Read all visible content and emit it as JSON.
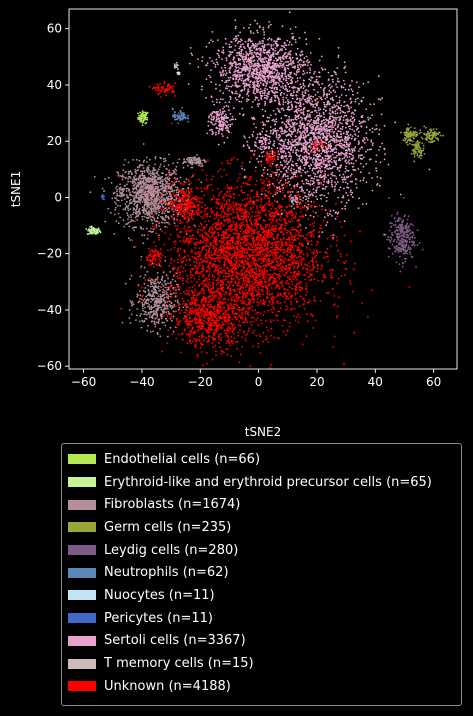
{
  "chart_data": {
    "type": "scatter",
    "title": "",
    "xlabel": "tSNE2",
    "ylabel": "tSNE1",
    "xlim": [
      -65,
      68
    ],
    "ylim": [
      -61,
      67
    ],
    "xticks": [
      -60,
      -40,
      -20,
      0,
      20,
      40,
      60
    ],
    "yticks": [
      -60,
      -40,
      -20,
      0,
      20,
      40,
      60
    ],
    "grid": false,
    "legend_position": "below-plot",
    "series": [
      {
        "name": "Endothelial cells (n=66)",
        "color": "#b5e853",
        "count": 66,
        "clusters": [
          {
            "x": -39.5,
            "y": 28.5,
            "sx": 0.9,
            "sy": 1.1,
            "n": 66
          }
        ]
      },
      {
        "name": "Erythroid-like and erythroid precursor cells (n=65)",
        "color": "#c6f598",
        "count": 65,
        "clusters": [
          {
            "x": -56.5,
            "y": -12,
            "sx": 1.1,
            "sy": 0.7,
            "n": 65
          }
        ]
      },
      {
        "name": "Fibroblasts (n=1674)",
        "color": "#b48f9c",
        "count": 1674,
        "clusters": [
          {
            "x": -37,
            "y": 1,
            "sx": 5.5,
            "sy": 5.5,
            "n": 1100
          },
          {
            "x": -35,
            "y": -37,
            "sx": 3.5,
            "sy": 5,
            "n": 420
          },
          {
            "x": -22,
            "y": 13,
            "sx": 2,
            "sy": 1,
            "n": 90
          },
          {
            "x": 13,
            "y": -1,
            "sx": 1,
            "sy": 1,
            "n": 40
          },
          {
            "x": -47,
            "y": 2,
            "sx": 1,
            "sy": 1.5,
            "n": 24
          }
        ]
      },
      {
        "name": "Germ cells (n=235)",
        "color": "#9aa637",
        "count": 235,
        "clusters": [
          {
            "x": 52,
            "y": 22.5,
            "sx": 1.4,
            "sy": 1.4,
            "n": 90
          },
          {
            "x": 59,
            "y": 22,
            "sx": 1.6,
            "sy": 1.5,
            "n": 80
          },
          {
            "x": 54.5,
            "y": 17,
            "sx": 1.1,
            "sy": 1.4,
            "n": 65
          }
        ]
      },
      {
        "name": "Leydig cells (n=280)",
        "color": "#7f5a86",
        "count": 280,
        "clusters": [
          {
            "x": 49,
            "y": -14.5,
            "sx": 2.2,
            "sy": 4,
            "n": 280
          }
        ]
      },
      {
        "name": "Neutrophils (n=62)",
        "color": "#5b88b8",
        "count": 62,
        "clusters": [
          {
            "x": -27,
            "y": 29,
            "sx": 1.2,
            "sy": 1.2,
            "n": 62
          }
        ]
      },
      {
        "name": "Nuocytes (n=11)",
        "color": "#c3e4f2",
        "count": 11,
        "clusters": [
          {
            "x": -27.5,
            "y": 44.5,
            "sx": 0.3,
            "sy": 0.8,
            "n": 11
          }
        ]
      },
      {
        "name": "Pericytes (n=11)",
        "color": "#3f68c9",
        "count": 11,
        "clusters": [
          {
            "x": -53.5,
            "y": 0,
            "sx": 0.3,
            "sy": 0.4,
            "n": 11
          }
        ]
      },
      {
        "name": "Sertoli cells (n=3367)",
        "color": "#e8a2cd",
        "count": 3367,
        "clusters": [
          {
            "x": 20,
            "y": 20,
            "sx": 9,
            "sy": 11,
            "n": 1900
          },
          {
            "x": 1,
            "y": 46,
            "sx": 8,
            "sy": 6,
            "n": 1200
          },
          {
            "x": -13,
            "y": 27,
            "sx": 2,
            "sy": 3,
            "n": 160
          },
          {
            "x": 2,
            "y": 20,
            "sx": 3,
            "sy": 3,
            "n": 107
          }
        ]
      },
      {
        "name": "T memory cells (n=15)",
        "color": "#d0b9b9",
        "count": 15,
        "clusters": [
          {
            "x": -28.5,
            "y": 46.5,
            "sx": 0.3,
            "sy": 0.5,
            "n": 15
          }
        ]
      },
      {
        "name": "Unknown (n=4188)",
        "color": "#ff0000",
        "count": 4188,
        "clusters": [
          {
            "x": -4,
            "y": -20,
            "sx": 13,
            "sy": 13,
            "n": 3200
          },
          {
            "x": -17,
            "y": -43,
            "sx": 6,
            "sy": 5,
            "n": 600
          },
          {
            "x": -25,
            "y": -2,
            "sx": 3,
            "sy": 3,
            "n": 200
          },
          {
            "x": -32,
            "y": 38.5,
            "sx": 1.8,
            "sy": 1,
            "n": 60
          },
          {
            "x": -36,
            "y": -21,
            "sx": 1.5,
            "sy": 1.5,
            "n": 60
          },
          {
            "x": 4,
            "y": 14,
            "sx": 1,
            "sy": 1,
            "n": 40
          },
          {
            "x": 20,
            "y": 18,
            "sx": 1,
            "sy": 1,
            "n": 28
          }
        ]
      }
    ]
  }
}
